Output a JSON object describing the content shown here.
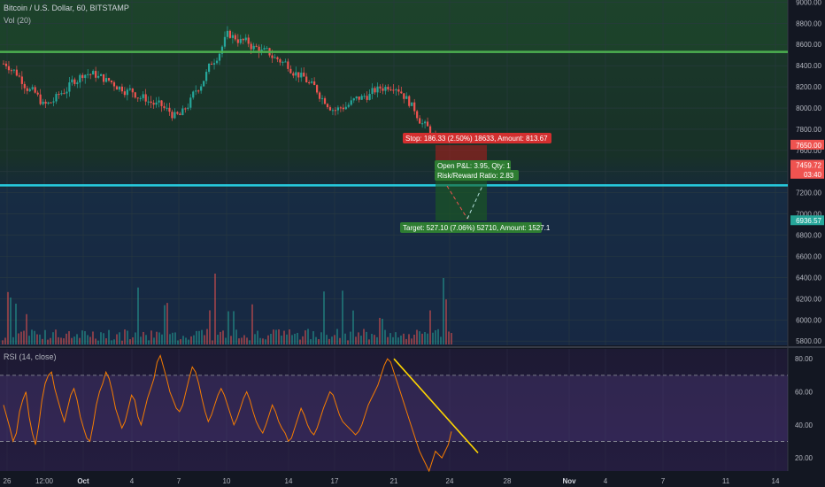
{
  "header": {
    "symbol_line": "Bitcoin / U.S. Dollar, 60, BITSTAMP",
    "volume_indicator": "Vol (20)",
    "rsi_indicator": "RSI (14, close)"
  },
  "colors": {
    "background": "#131722",
    "candle_up": "#26a69a",
    "candle_down": "#ef5350",
    "resistance_line": "#4caf50",
    "support_line": "#26c6da",
    "rsi_line": "#f57c00",
    "rsi_trendline": "#ffd600",
    "stop_zone": "#b71c1c",
    "target_zone": "#1b5e20",
    "rsi_band": "#7e57c2"
  },
  "chart_data": [
    {
      "type": "candlestick",
      "title": "Bitcoin / U.S. Dollar, 60, BITSTAMP",
      "interval": "60",
      "x_ticks": [
        "26",
        "12:00",
        "Oct",
        "4",
        "7",
        "10",
        "14",
        "17",
        "21",
        "24",
        "28",
        "Nov",
        "4",
        "7",
        "11",
        "14"
      ],
      "y_ticks": [
        9000,
        8800,
        8600,
        8400,
        8200,
        8000,
        7800,
        7600,
        7400,
        7200,
        7000,
        6800,
        6600,
        6400,
        6200,
        6000,
        5800
      ],
      "ylim": [
        5760,
        9020
      ],
      "price_path_keypoints": [
        {
          "x": "26",
          "y": 8420
        },
        {
          "x": "12:00",
          "y": 8000
        },
        {
          "x": "Oct",
          "y": 8350
        },
        {
          "x": "4",
          "y": 8150
        },
        {
          "x": "7",
          "y": 7900
        },
        {
          "x": "10",
          "y": 8700
        },
        {
          "x": "14",
          "y": 8400
        },
        {
          "x": "17",
          "y": 7980
        },
        {
          "x": "21",
          "y": 8250
        },
        {
          "x": "24",
          "y": 7460
        }
      ],
      "horizontal_lines": [
        {
          "name": "resistance",
          "price": 8530
        },
        {
          "name": "support",
          "price": 7270
        }
      ],
      "price_labels": [
        {
          "text": "7650.00",
          "price": 7650,
          "color": "#ef5350"
        },
        {
          "text": "7463.67",
          "price": 7463.67,
          "color": "#363a45"
        },
        {
          "text": "7459.72",
          "price": 7459.72,
          "color": "#ef5350"
        },
        {
          "text": "03:40",
          "price": 7375,
          "color": "#ef5350"
        },
        {
          "text": "6936.57",
          "price": 6936.57,
          "color": "#26a69a"
        }
      ],
      "position_tool": {
        "entry": 7463.67,
        "stop": 7650,
        "target": 6936.57,
        "stop_label": "Stop: 186.33 (2.50%) 18633, Amount: 813.67",
        "open_pnl_label": "Open P&L: 3.95, Qty: 1",
        "risk_reward_label": "Risk/Reward Ratio: 2.83",
        "target_label": "Target: 527.10 (7.06%) 52710, Amount: 1527.1"
      }
    },
    {
      "type": "bar",
      "title": "Vol (20)",
      "note": "volume histogram at bottom of price pane, spike near 24"
    },
    {
      "type": "line",
      "title": "RSI (14, close)",
      "y_ticks": [
        80,
        60,
        40,
        20
      ],
      "ylim": [
        12,
        86
      ],
      "bands": {
        "upper": 70,
        "lower": 30
      },
      "series": [
        {
          "values": [
            52,
            45,
            38,
            30,
            35,
            48,
            55,
            60,
            45,
            35,
            28,
            40,
            55,
            65,
            70,
            72,
            62,
            55,
            48,
            42,
            50,
            58,
            62,
            55,
            45,
            38,
            32,
            30,
            40,
            52,
            60,
            65,
            72,
            68,
            60,
            50,
            44,
            38,
            42,
            50,
            58,
            55,
            45,
            40,
            48,
            56,
            62,
            68,
            78,
            82,
            75,
            68,
            60,
            55,
            50,
            48,
            52,
            60,
            68,
            75,
            72,
            65,
            56,
            48,
            42,
            46,
            52,
            58,
            62,
            58,
            52,
            46,
            40,
            44,
            50,
            56,
            60,
            55,
            48,
            42,
            38,
            35,
            40,
            46,
            52,
            48,
            42,
            38,
            35,
            30,
            32,
            38,
            44,
            50,
            46,
            40,
            36,
            34,
            38,
            44,
            50,
            55,
            60,
            58,
            52,
            46,
            42,
            40,
            38,
            36,
            34,
            36,
            40,
            46,
            52,
            56,
            60,
            64,
            70,
            76,
            80,
            78,
            72,
            66,
            60,
            54,
            48,
            42,
            36,
            30,
            24,
            20,
            16,
            12,
            18,
            24,
            22,
            20,
            24,
            28,
            36
          ]
        }
      ],
      "trendline": {
        "from": {
          "x": "21",
          "y": 80
        },
        "to": {
          "x": "24",
          "y": 23
        }
      }
    }
  ]
}
